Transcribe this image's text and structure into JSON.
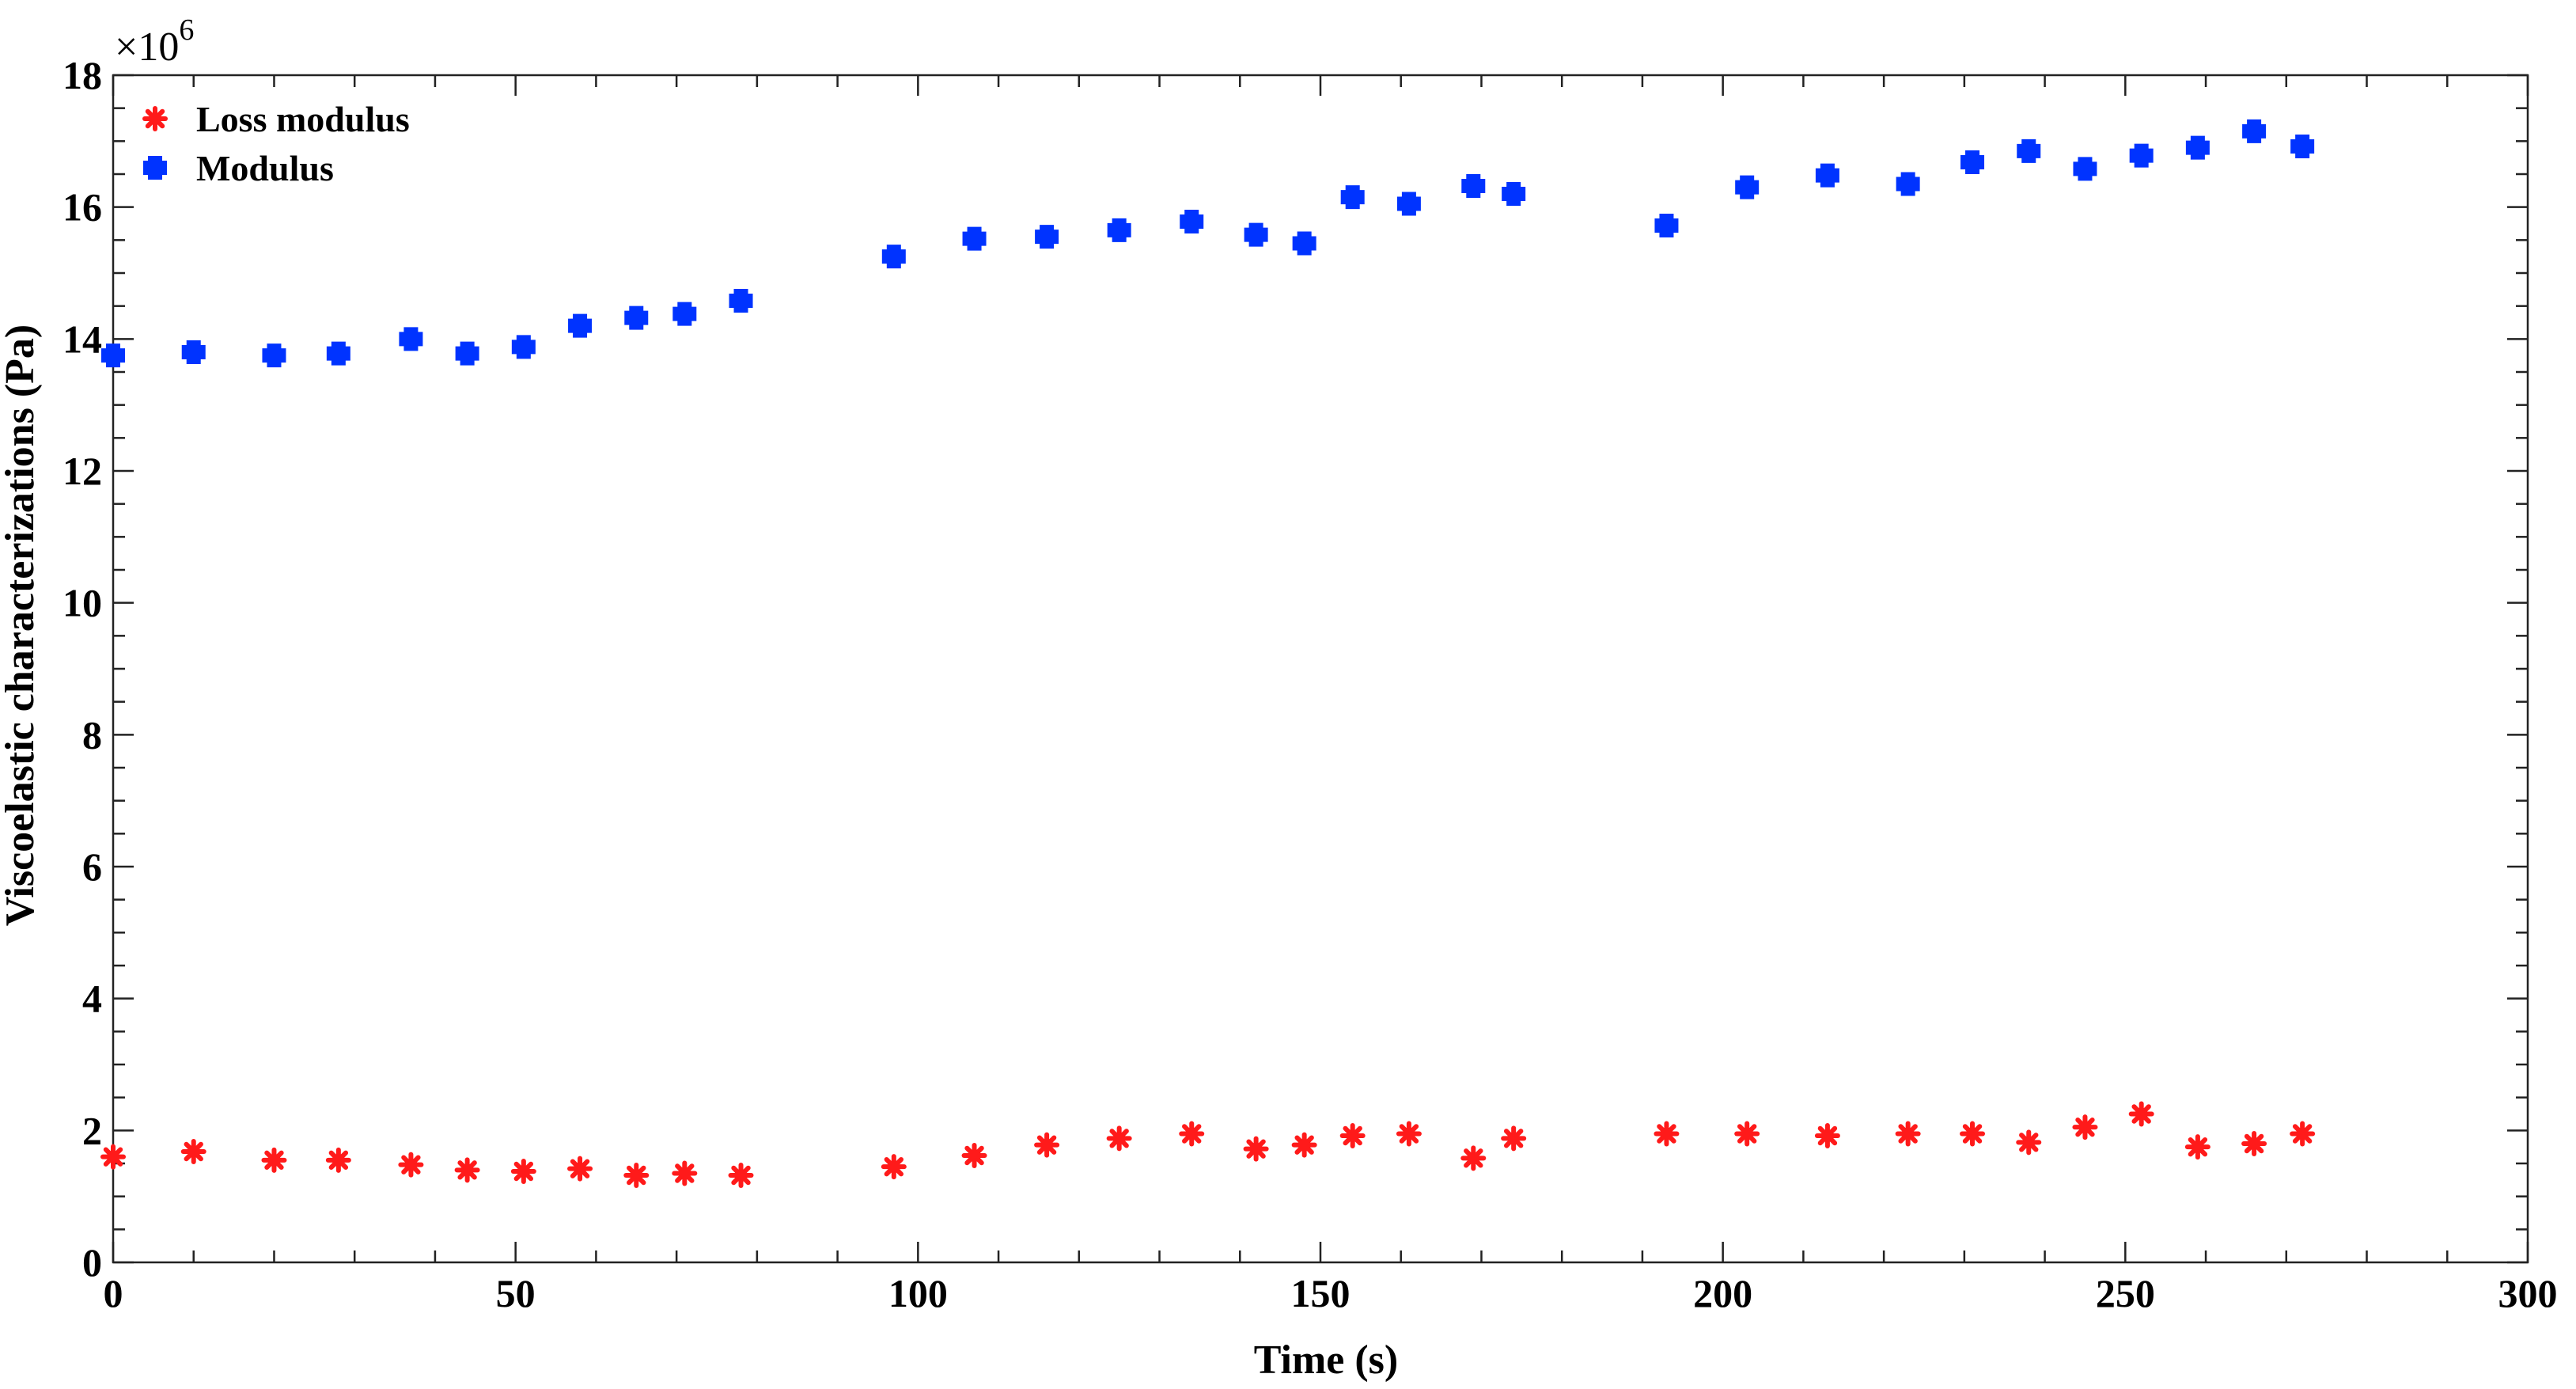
{
  "chart_data": {
    "type": "scatter",
    "xlabel": "Time (s)",
    "ylabel": "Viscoelastic characterizations (Pa)",
    "xlim": [
      0,
      300
    ],
    "ylim": [
      0,
      18
    ],
    "x_ticks": [
      "0",
      "50",
      "100",
      "150",
      "200",
      "250",
      "300"
    ],
    "y_ticks": [
      "0",
      "2",
      "4",
      "6",
      "8",
      "10",
      "12",
      "14",
      "16",
      "18"
    ],
    "y_multiplier": "×10",
    "y_multiplier_exp": "6",
    "grid": false,
    "legend_position": "top-left",
    "series": [
      {
        "name": "Loss modulus",
        "color": "#ff1a1a",
        "marker": "asterisk",
        "x": [
          0,
          10,
          20,
          28,
          37,
          44,
          51,
          58,
          65,
          71,
          78,
          97,
          107,
          116,
          125,
          134,
          142,
          148,
          154,
          161,
          169,
          174,
          193,
          203,
          213,
          223,
          231,
          238,
          245,
          252,
          259,
          266,
          272
        ],
        "y": [
          1.6,
          1.68,
          1.55,
          1.55,
          1.48,
          1.4,
          1.38,
          1.42,
          1.32,
          1.35,
          1.32,
          1.45,
          1.62,
          1.78,
          1.88,
          1.95,
          1.72,
          1.78,
          1.92,
          1.95,
          1.58,
          1.88,
          1.95,
          1.95,
          1.92,
          1.95,
          1.95,
          1.82,
          2.05,
          2.25,
          1.75,
          1.8,
          1.95
        ]
      },
      {
        "name": "Modulus",
        "color": "#0033ff",
        "marker": "plus",
        "x": [
          0,
          10,
          20,
          28,
          37,
          44,
          51,
          58,
          65,
          71,
          78,
          97,
          107,
          116,
          125,
          134,
          142,
          148,
          154,
          161,
          169,
          174,
          193,
          203,
          213,
          223,
          231,
          238,
          245,
          252,
          259,
          266,
          272
        ],
        "y": [
          13.75,
          13.8,
          13.75,
          13.78,
          14.0,
          13.78,
          13.88,
          14.2,
          14.32,
          14.38,
          14.58,
          15.25,
          15.52,
          15.55,
          15.65,
          15.78,
          15.58,
          15.45,
          16.15,
          16.05,
          16.32,
          16.2,
          15.72,
          16.3,
          16.48,
          16.35,
          16.68,
          16.85,
          16.58,
          16.78,
          16.9,
          17.15,
          16.92
        ]
      }
    ]
  }
}
